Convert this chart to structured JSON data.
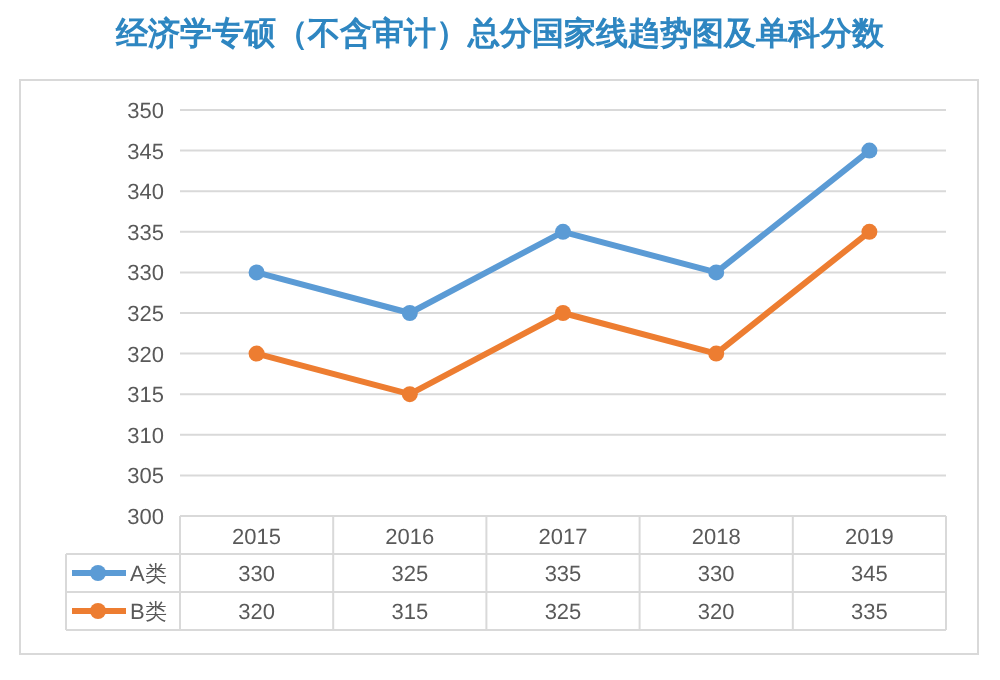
{
  "chart_data": {
    "type": "line",
    "title": "经济学专硕（不含审计）总分国家线趋势图及单科分数",
    "categories": [
      "2015",
      "2016",
      "2017",
      "2018",
      "2019"
    ],
    "series": [
      {
        "name": "A类",
        "color": "#5b9bd5",
        "values": [
          330,
          325,
          335,
          330,
          345
        ]
      },
      {
        "name": "B类",
        "color": "#ed7d31",
        "values": [
          320,
          315,
          325,
          320,
          335
        ]
      }
    ],
    "ylim": [
      300,
      350
    ],
    "yticks": [
      300,
      305,
      310,
      315,
      320,
      325,
      330,
      335,
      340,
      345,
      350
    ],
    "grid": "y",
    "marker": "circle",
    "line_style": "solid",
    "legend": "bottom",
    "data_labels": true
  }
}
